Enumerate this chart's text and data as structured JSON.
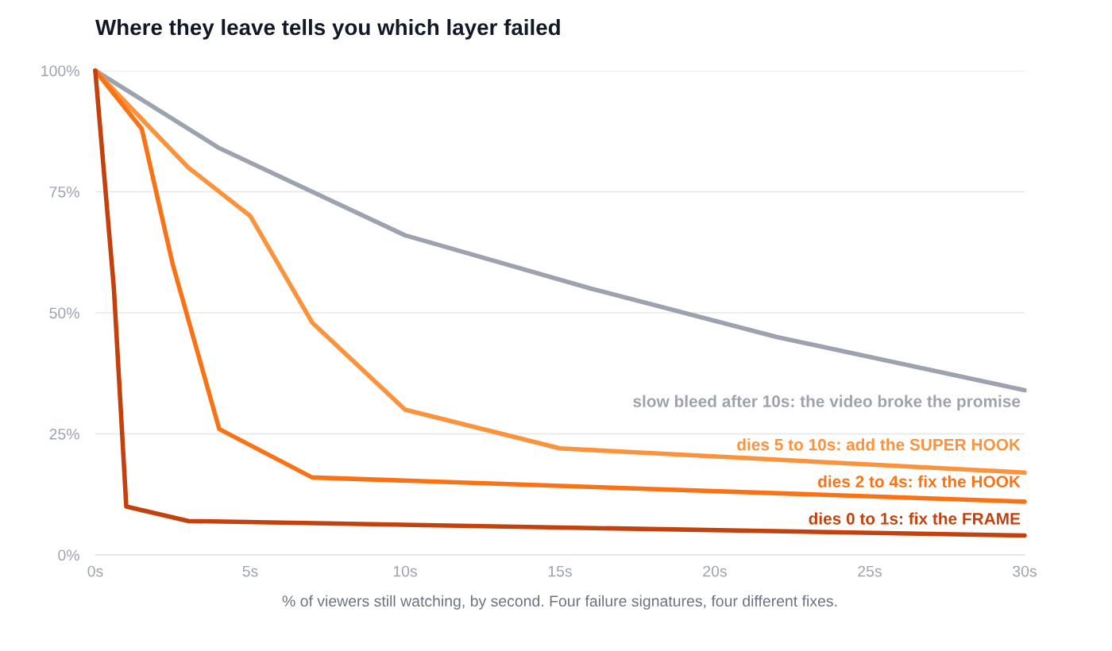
{
  "chart_data": {
    "type": "line",
    "title": "Where they leave tells you which layer failed",
    "xlabel": "% of viewers still watching, by second. Four failure signatures, four different fixes.",
    "series": [
      {
        "name": "slow bleed after 10s: the video broke the promise",
        "color": "#9ca3af",
        "x": [
          0,
          4,
          10,
          16,
          22,
          30
        ],
        "values": [
          100,
          84,
          66,
          55,
          45,
          34
        ]
      },
      {
        "name": "dies 5 to 10s: add the SUPER HOOK",
        "color": "#fb923c",
        "x": [
          0,
          3,
          5,
          7,
          10,
          15,
          30
        ],
        "values": [
          100,
          80,
          70,
          48,
          30,
          22,
          17
        ]
      },
      {
        "name": "dies 2 to 4s: fix the HOOK",
        "color": "#f97316",
        "x": [
          0,
          1.5,
          2.5,
          4,
          7,
          30
        ],
        "values": [
          100,
          88,
          60,
          26,
          16,
          11
        ]
      },
      {
        "name": "dies 0 to 1s: fix the FRAME",
        "color": "#c2410c",
        "x": [
          0,
          0.6,
          1,
          3,
          30
        ],
        "values": [
          100,
          55,
          10,
          7,
          4
        ]
      }
    ],
    "xlim": [
      0,
      30
    ],
    "xticks": [
      {
        "value": 0,
        "label": "0s"
      },
      {
        "value": 5,
        "label": "5s"
      },
      {
        "value": 10,
        "label": "10s"
      },
      {
        "value": 15,
        "label": "15s"
      },
      {
        "value": 20,
        "label": "20s"
      },
      {
        "value": 25,
        "label": "25s"
      },
      {
        "value": 30,
        "label": "30s"
      }
    ],
    "ylim": [
      0,
      100
    ],
    "yticks": [
      {
        "value": 0,
        "label": "0%"
      },
      {
        "value": 25,
        "label": "25%"
      },
      {
        "value": 50,
        "label": "50%"
      },
      {
        "value": 75,
        "label": "75%"
      },
      {
        "value": 100,
        "label": "100%"
      }
    ],
    "grid": "y",
    "legend": false,
    "marker": "none",
    "line_style": "solid"
  }
}
